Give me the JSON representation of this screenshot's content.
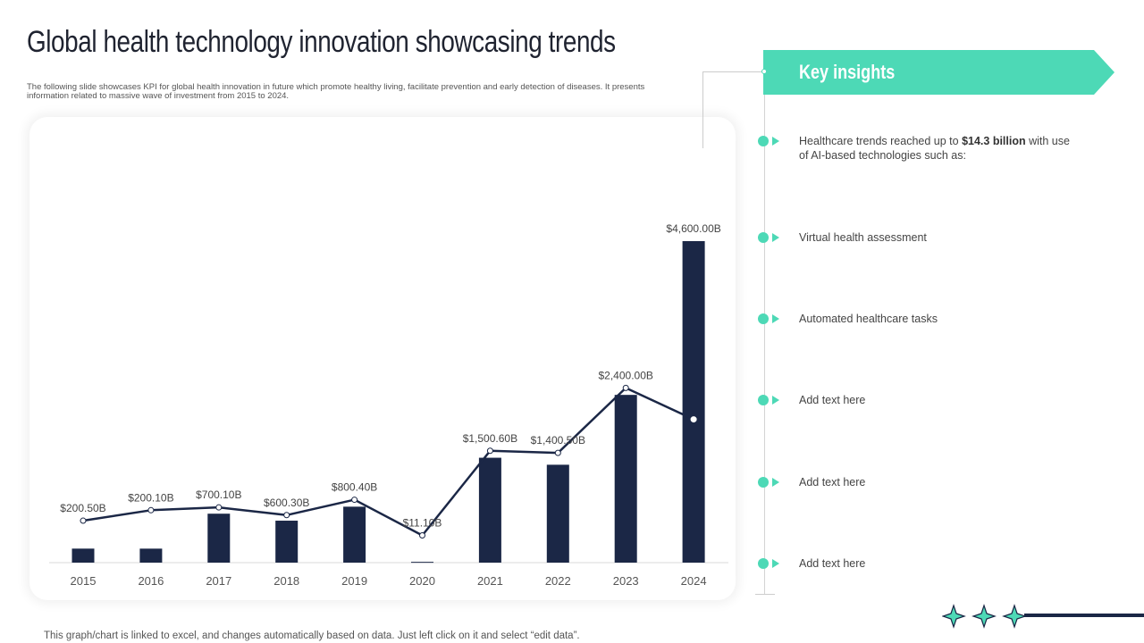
{
  "header": {
    "title": "Global health technology innovation showcasing trends",
    "subtitle": "The following slide showcases KPI for global health innovation in future which promote healthy living, facilitate prevention and early detection of diseases. It presents information related to massive wave of investment from 2015 to 2024."
  },
  "footnote": "This graph/chart is linked to excel, and changes automatically based on data. Just left click on it and select “edit data”.",
  "insights": {
    "title": "Key insights",
    "first_prefix": "Healthcare trends reached up to ",
    "first_bold": "$14.3 billion",
    "first_suffix": " with use of AI-based technologies such as:",
    "items": [
      "Virtual health assessment",
      "Automated healthcare tasks",
      "Add text here",
      "Add text here",
      "Add text here"
    ]
  },
  "colors": {
    "accent": "#4dd9b6",
    "navy": "#1b2746"
  },
  "chart_data": {
    "type": "bar",
    "categories": [
      "2015",
      "2016",
      "2017",
      "2018",
      "2019",
      "2020",
      "2021",
      "2022",
      "2023",
      "2024"
    ],
    "values": [
      200.5,
      200.1,
      700.1,
      600.3,
      800.4,
      11.1,
      1500.6,
      1400.5,
      2400.0,
      4600.0
    ],
    "labels": [
      "$200.50B",
      "$200.10B",
      "$700.10B",
      "$600.30B",
      "$800.40B",
      "$11.10B",
      "$1,500.60B",
      "$1,400.50B",
      "$2,400.00B",
      "$4,600.00B"
    ],
    "line_values": [
      600,
      750,
      790,
      680,
      900,
      390,
      1600,
      1570,
      2500,
      2050
    ],
    "ylim": [
      0,
      4600
    ],
    "title": "",
    "xlabel": "",
    "ylabel": ""
  }
}
